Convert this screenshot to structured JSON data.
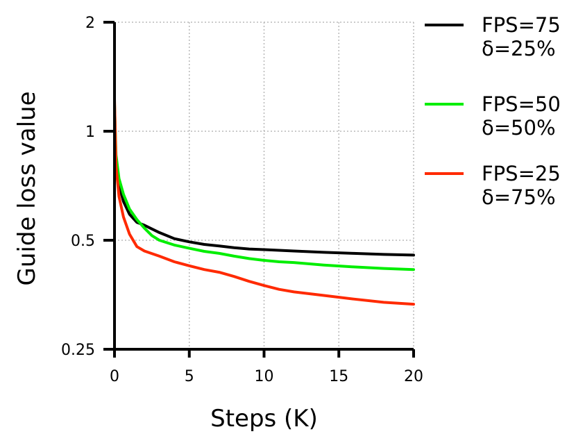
{
  "chart_data": {
    "type": "line",
    "title": "",
    "xlabel": "Steps (K)",
    "ylabel": "Guide loss value",
    "xlim": [
      0,
      20
    ],
    "ylim": [
      0.25,
      2
    ],
    "yscale": "log2",
    "xticks": [
      0,
      5,
      10,
      15,
      20
    ],
    "xtick_labels": [
      "0",
      "5",
      "10",
      "15",
      "20"
    ],
    "yticks": [
      0.25,
      0.5,
      1,
      2
    ],
    "ytick_labels": [
      "0.25",
      "0.5",
      "1",
      "2"
    ],
    "grid": true,
    "legend_position": "right",
    "series": [
      {
        "name": "FPS=75",
        "name_line2": "δ=25%",
        "color": "#000000",
        "points": [
          [
            0,
            1.06
          ],
          [
            0.1,
            0.82
          ],
          [
            0.3,
            0.71
          ],
          [
            0.6,
            0.64
          ],
          [
            1,
            0.59
          ],
          [
            1.5,
            0.56
          ],
          [
            2,
            0.55
          ],
          [
            3,
            0.525
          ],
          [
            4,
            0.505
          ],
          [
            5,
            0.495
          ],
          [
            6,
            0.487
          ],
          [
            7,
            0.482
          ],
          [
            8,
            0.477
          ],
          [
            9,
            0.473
          ],
          [
            10,
            0.471
          ],
          [
            12,
            0.467
          ],
          [
            14,
            0.463
          ],
          [
            16,
            0.46
          ],
          [
            18,
            0.457
          ],
          [
            20,
            0.455
          ]
        ]
      },
      {
        "name": "FPS=50",
        "name_line2": "δ=50%",
        "color": "#00ee00",
        "points": [
          [
            0,
            1.19
          ],
          [
            0.1,
            0.86
          ],
          [
            0.3,
            0.74
          ],
          [
            0.6,
            0.67
          ],
          [
            1,
            0.61
          ],
          [
            1.5,
            0.57
          ],
          [
            2,
            0.54
          ],
          [
            2.5,
            0.515
          ],
          [
            3,
            0.5
          ],
          [
            4,
            0.485
          ],
          [
            5,
            0.475
          ],
          [
            6,
            0.466
          ],
          [
            7,
            0.46
          ],
          [
            8,
            0.452
          ],
          [
            9,
            0.445
          ],
          [
            10,
            0.44
          ],
          [
            11,
            0.436
          ],
          [
            12,
            0.434
          ],
          [
            14,
            0.427
          ],
          [
            16,
            0.422
          ],
          [
            18,
            0.418
          ],
          [
            20,
            0.415
          ]
        ]
      },
      {
        "name": "FPS=25",
        "name_line2": "δ=75%",
        "color": "#ff2a00",
        "points": [
          [
            0,
            1.23
          ],
          [
            0.1,
            0.8
          ],
          [
            0.3,
            0.66
          ],
          [
            0.6,
            0.58
          ],
          [
            1,
            0.52
          ],
          [
            1.5,
            0.48
          ],
          [
            2,
            0.467
          ],
          [
            3,
            0.452
          ],
          [
            4,
            0.436
          ],
          [
            5,
            0.425
          ],
          [
            6,
            0.415
          ],
          [
            7,
            0.408
          ],
          [
            8,
            0.397
          ],
          [
            9,
            0.385
          ],
          [
            10,
            0.375
          ],
          [
            11,
            0.366
          ],
          [
            12,
            0.36
          ],
          [
            14,
            0.352
          ],
          [
            16,
            0.344
          ],
          [
            18,
            0.337
          ],
          [
            20,
            0.333
          ]
        ]
      }
    ]
  }
}
